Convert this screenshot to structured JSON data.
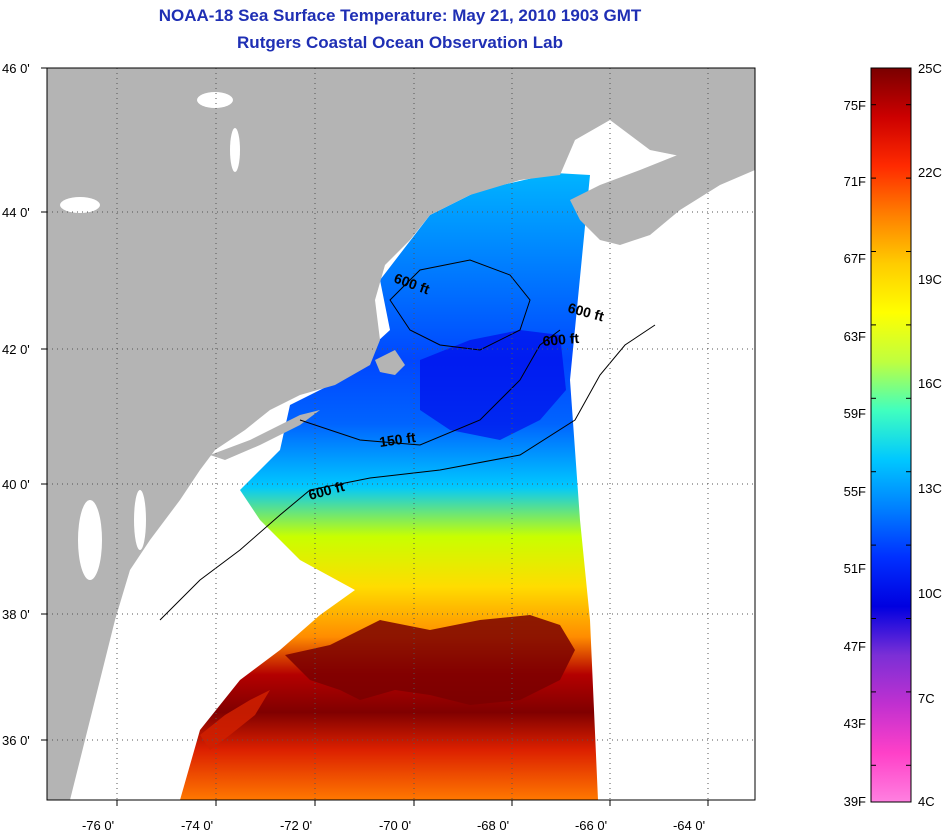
{
  "title_line1": "NOAA-18 Sea Surface Temperature:  May 21, 2010 1903 GMT",
  "title_line2": "Rutgers Coastal Ocean Observation Lab",
  "map": {
    "lon_labels": [
      "-76 0'",
      "-74 0'",
      "-72 0'",
      "-70 0'",
      "-68 0'",
      "-66 0'",
      "-64 0'"
    ],
    "lat_labels": [
      "46 0'",
      "44 0'",
      "42 0'",
      "40 0'",
      "38 0'",
      "36 0'"
    ],
    "contour_labels": [
      "600 ft",
      "600 ft",
      "600 ft",
      "150 ft",
      "600 ft"
    ]
  },
  "colorbar": {
    "fahrenheit_labels": [
      "75F",
      "71F",
      "67F",
      "63F",
      "59F",
      "55F",
      "51F",
      "47F",
      "43F",
      "39F"
    ],
    "celsius_labels": [
      "25C",
      "22C",
      "19C",
      "16C",
      "13C",
      "10C",
      "7C",
      "4C"
    ],
    "colors": [
      "#7a0000",
      "#cc0000",
      "#ff2a00",
      "#ff7f00",
      "#ffcc00",
      "#ffff00",
      "#bfff3f",
      "#40ffbf",
      "#00c8ff",
      "#0080ff",
      "#0030ff",
      "#0000e0",
      "#7b2fd6",
      "#c030d0",
      "#ff40c8",
      "#ff80e0"
    ]
  }
}
